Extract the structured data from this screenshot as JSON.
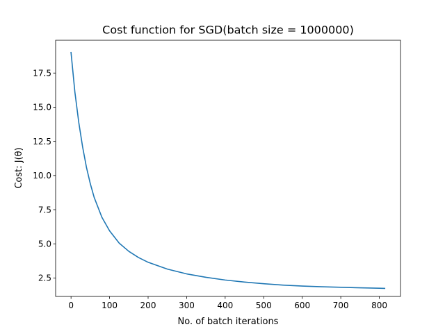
{
  "chart_data": {
    "type": "line",
    "title": "Cost function for SGD(batch size = 1000000)",
    "xlabel": "No. of batch iterations",
    "ylabel": "Cost: J(θ)",
    "xlim": [
      -40,
      855
    ],
    "ylim": [
      1.15,
      19.9
    ],
    "xticks": [
      0,
      100,
      200,
      300,
      400,
      500,
      600,
      700,
      800
    ],
    "xtick_labels": [
      "0",
      "100",
      "200",
      "300",
      "400",
      "500",
      "600",
      "700",
      "800"
    ],
    "yticks": [
      2.5,
      5.0,
      7.5,
      10.0,
      12.5,
      15.0,
      17.5
    ],
    "ytick_labels": [
      "2.5",
      "5.0",
      "7.5",
      "10.0",
      "12.5",
      "15.0",
      "17.5"
    ],
    "grid": false,
    "legend": "none",
    "color": "#1f77b4",
    "series": [
      {
        "x": [
          0,
          10,
          20,
          30,
          40,
          50,
          60,
          80,
          100,
          125,
          150,
          175,
          200,
          250,
          300,
          350,
          400,
          450,
          500,
          550,
          600,
          650,
          700,
          750,
          800,
          814
        ],
        "values": [
          19.0,
          16.1,
          13.9,
          12.1,
          10.6,
          9.4,
          8.4,
          6.95,
          5.95,
          5.05,
          4.45,
          4.0,
          3.65,
          3.15,
          2.8,
          2.55,
          2.35,
          2.2,
          2.08,
          1.98,
          1.91,
          1.86,
          1.82,
          1.78,
          1.75,
          1.74
        ]
      }
    ]
  }
}
